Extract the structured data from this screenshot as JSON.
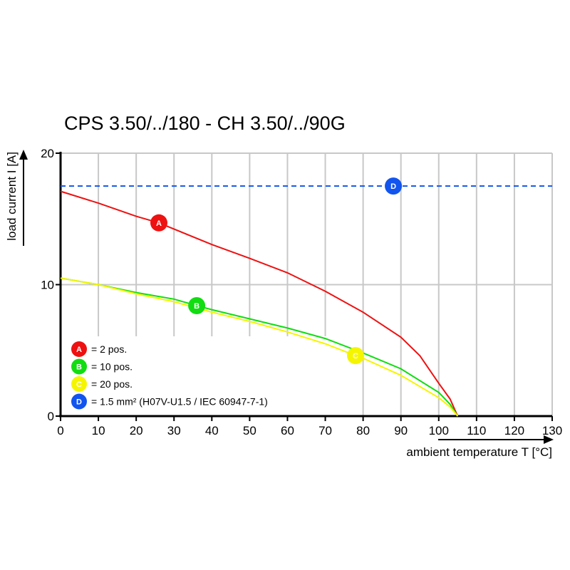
{
  "chart_data": {
    "type": "line",
    "title": "CPS 3.50/../180 - CH 3.50/../90G",
    "xlabel": "ambient temperature T [°C]",
    "ylabel": "load current I [A]",
    "xlim": [
      0,
      130
    ],
    "ylim": [
      0,
      20
    ],
    "xticks": [
      0,
      10,
      20,
      30,
      40,
      50,
      60,
      70,
      80,
      90,
      100,
      110,
      120,
      130
    ],
    "yticks": [
      0,
      10,
      20
    ],
    "grid": true,
    "series": [
      {
        "marker": "A",
        "name": "= 2 pos.",
        "color": "#ee1111",
        "dashed": false,
        "marker_x": 26,
        "x": [
          0,
          10,
          20,
          26,
          40,
          50,
          60,
          70,
          80,
          90,
          95,
          100,
          103,
          105
        ],
        "y": [
          17.1,
          16.2,
          15.2,
          14.7,
          13.05,
          12.0,
          10.9,
          9.5,
          7.9,
          6.0,
          4.6,
          2.5,
          1.3,
          0
        ]
      },
      {
        "marker": "B",
        "name": "= 10 pos.",
        "color": "#11dd11",
        "dashed": false,
        "marker_x": 36,
        "x": [
          0,
          10,
          20,
          30,
          36,
          40,
          50,
          60,
          70,
          80,
          90,
          100,
          103,
          105
        ],
        "y": [
          10.5,
          10.0,
          9.4,
          8.9,
          8.4,
          8.1,
          7.4,
          6.7,
          5.9,
          4.8,
          3.6,
          1.8,
          0.9,
          0
        ]
      },
      {
        "marker": "C",
        "name": "= 20 pos.",
        "color": "#f5f500",
        "dashed": false,
        "marker_x": 78,
        "x": [
          0,
          10,
          20,
          30,
          40,
          50,
          60,
          70,
          78,
          80,
          90,
          100,
          103,
          105
        ],
        "y": [
          10.5,
          10.0,
          9.3,
          8.7,
          7.9,
          7.2,
          6.4,
          5.5,
          4.6,
          4.4,
          3.1,
          1.4,
          0.7,
          0
        ]
      },
      {
        "marker": "D",
        "name": "= 1.5 mm² (H07V-U1.5 / IEC 60947-7-1)",
        "color": "#1155ee",
        "dashed": true,
        "marker_x": 88,
        "x": [
          0,
          130
        ],
        "y": [
          17.5,
          17.5
        ]
      }
    ],
    "legend_position": "bottom-left"
  }
}
